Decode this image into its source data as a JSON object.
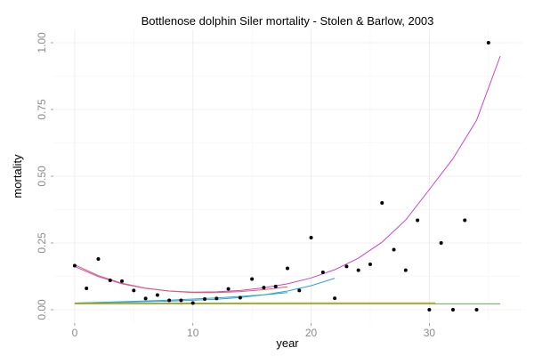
{
  "chart_data": {
    "type": "scatter",
    "title": "Bottlenose dolphin Siler mortality - Stolen & Barlow, 2003",
    "xlabel": "year",
    "ylabel": "mortality",
    "xlim": [
      -1.8,
      37.8
    ],
    "ylim": [
      -0.05,
      1.05
    ],
    "xticks": [
      0,
      10,
      20,
      30
    ],
    "yticks": [
      0.0,
      0.25,
      0.5,
      0.75,
      1.0
    ],
    "ytick_labels": [
      "0.00",
      "0.25",
      "0.50",
      "0.75",
      "1.00"
    ],
    "grid": true,
    "legend": "none",
    "points": [
      {
        "x": 0,
        "y": 0.165
      },
      {
        "x": 1,
        "y": 0.08
      },
      {
        "x": 2,
        "y": 0.19
      },
      {
        "x": 3,
        "y": 0.11
      },
      {
        "x": 4,
        "y": 0.107
      },
      {
        "x": 5,
        "y": 0.072
      },
      {
        "x": 6,
        "y": 0.042
      },
      {
        "x": 7,
        "y": 0.055
      },
      {
        "x": 8,
        "y": 0.035
      },
      {
        "x": 9,
        "y": 0.035
      },
      {
        "x": 10,
        "y": 0.025
      },
      {
        "x": 11,
        "y": 0.04
      },
      {
        "x": 12,
        "y": 0.042
      },
      {
        "x": 13,
        "y": 0.078
      },
      {
        "x": 14,
        "y": 0.045
      },
      {
        "x": 15,
        "y": 0.115
      },
      {
        "x": 16,
        "y": 0.083
      },
      {
        "x": 17,
        "y": 0.087
      },
      {
        "x": 18,
        "y": 0.155
      },
      {
        "x": 19,
        "y": 0.072
      },
      {
        "x": 20,
        "y": 0.27
      },
      {
        "x": 21,
        "y": 0.14
      },
      {
        "x": 22,
        "y": 0.043
      },
      {
        "x": 23,
        "y": 0.162
      },
      {
        "x": 24,
        "y": 0.148
      },
      {
        "x": 25,
        "y": 0.17
      },
      {
        "x": 26,
        "y": 0.4
      },
      {
        "x": 27,
        "y": 0.225
      },
      {
        "x": 28,
        "y": 0.148
      },
      {
        "x": 29,
        "y": 0.335
      },
      {
        "x": 30,
        "y": 0.0
      },
      {
        "x": 31,
        "y": 0.25
      },
      {
        "x": 32,
        "y": 0.0
      },
      {
        "x": 33,
        "y": 0.335
      },
      {
        "x": 34,
        "y": 0.0
      },
      {
        "x": 35,
        "y": 1.0
      }
    ],
    "lines": [
      {
        "color": "#cc44cc",
        "x": [
          0,
          2,
          4,
          6,
          8,
          10,
          12,
          14,
          16,
          18,
          20,
          22,
          24,
          26,
          28,
          30,
          32,
          34,
          36
        ],
        "y": [
          0.162,
          0.124,
          0.097,
          0.08,
          0.07,
          0.066,
          0.067,
          0.072,
          0.082,
          0.097,
          0.119,
          0.15,
          0.193,
          0.253,
          0.336,
          0.45,
          0.566,
          0.71,
          0.95
        ]
      },
      {
        "color": "#e06060",
        "x": [
          0,
          2,
          4,
          6,
          8,
          10,
          12,
          14,
          16,
          18
        ],
        "y": [
          0.168,
          0.128,
          0.099,
          0.081,
          0.07,
          0.064,
          0.064,
          0.068,
          0.075,
          0.086
        ]
      },
      {
        "color": "#3399ff",
        "x": [
          0,
          4,
          8,
          12,
          14,
          16,
          18,
          20,
          22
        ],
        "y": [
          0.025,
          0.028,
          0.032,
          0.039,
          0.046,
          0.056,
          0.07,
          0.09,
          0.118
        ]
      },
      {
        "color": "#20b0b0",
        "x": [
          0,
          4,
          8,
          12,
          16,
          18
        ],
        "y": [
          0.025,
          0.03,
          0.036,
          0.044,
          0.056,
          0.064
        ]
      },
      {
        "color": "#6aa84f",
        "x": [
          0,
          36
        ],
        "y": [
          0.022,
          0.022
        ]
      },
      {
        "color": "#c8a000",
        "x": [
          0,
          20,
          30.5
        ],
        "y": [
          0.024,
          0.026,
          0.026
        ]
      }
    ]
  }
}
